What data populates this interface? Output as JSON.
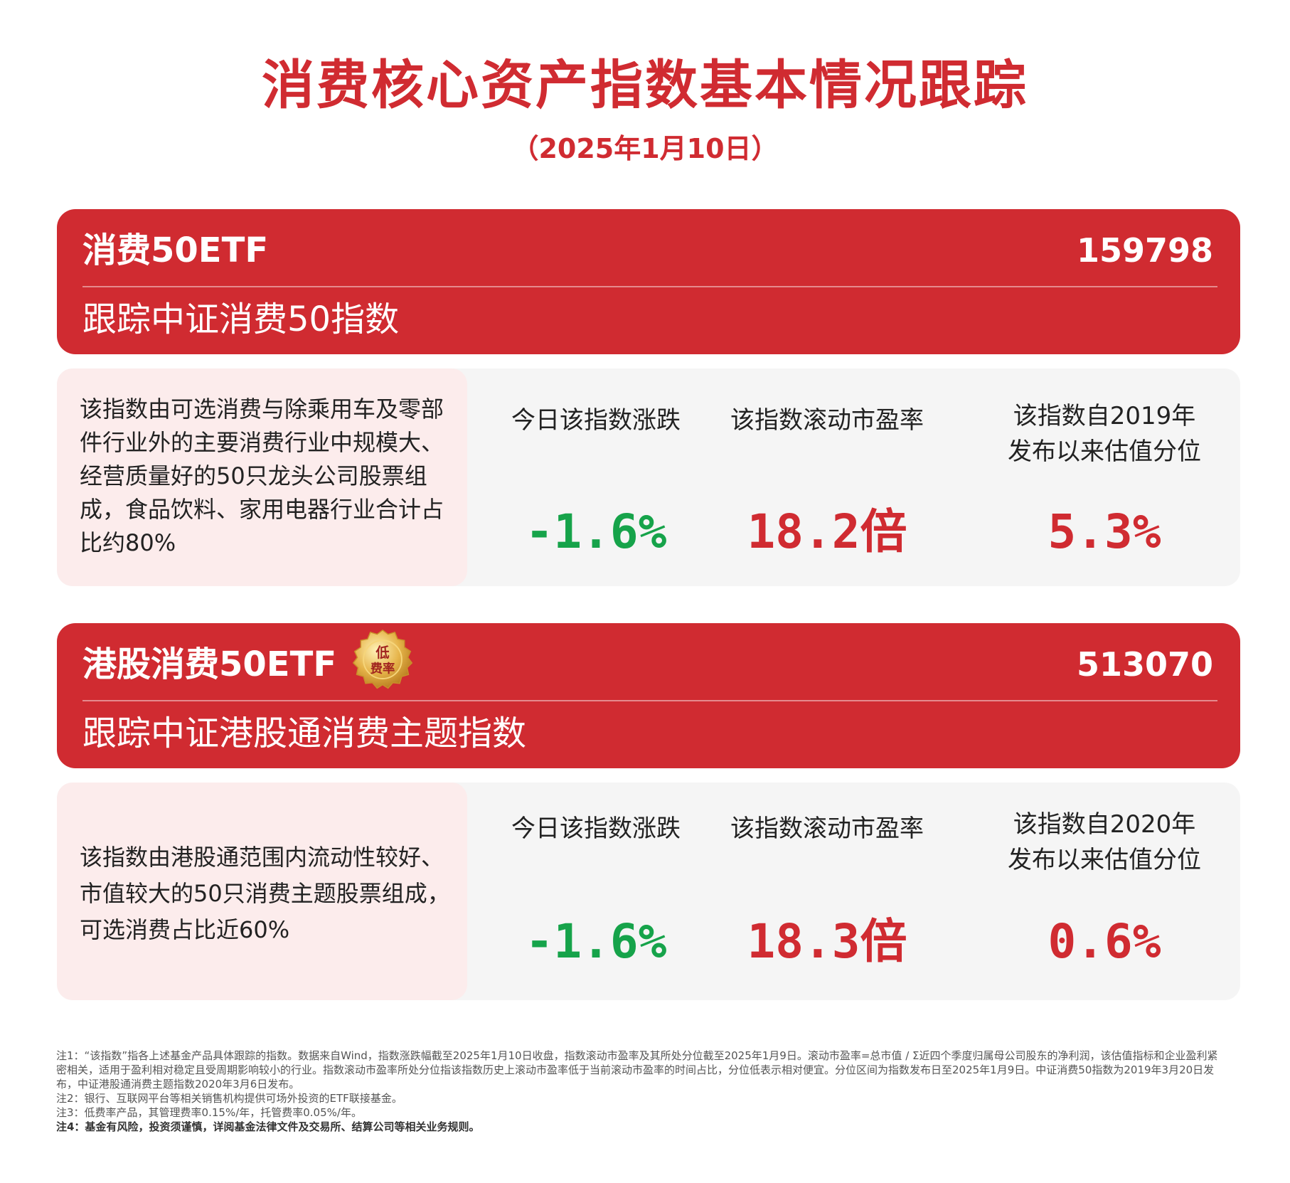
{
  "title": "消费核心资产指数基本情况跟踪",
  "date": "（2025年1月10日）",
  "colors": {
    "accent": "#d02b31",
    "down": "#16a34a",
    "panel": "#f5f5f5",
    "desc_panel": "#fcecec"
  },
  "funds": [
    {
      "name": "消费50ETF",
      "code": "159798",
      "tracking": "跟踪中证消费50指数",
      "description": "该指数由可选消费与除乘用车及零部件行业外的主要消费行业中规模大、经营质量好的50只龙头公司股票组成，食品饮料、家用电器行业合计占比约80%",
      "metrics": [
        {
          "label": "今日该指数涨跌",
          "value": "-1.6%",
          "trend": "down"
        },
        {
          "label": "该指数滚动市盈率",
          "value": "18.2倍",
          "trend": "neutral"
        },
        {
          "label": "该指数自2019年\n发布以来估值分位",
          "value": "5.3%",
          "trend": "neutral"
        }
      ]
    },
    {
      "name": "港股消费50ETF",
      "code": "513070",
      "badge": {
        "line1": "低",
        "line2": "费率",
        "icon": "low-fee-seal-icon"
      },
      "tracking": "跟踪中证港股通消费主题指数",
      "description": "该指数由港股通范围内流动性较好、市值较大的50只消费主题股票组成，可选消费占比近60%",
      "metrics": [
        {
          "label": "今日该指数涨跌",
          "value": "-1.6%",
          "trend": "down"
        },
        {
          "label": "该指数滚动市盈率",
          "value": "18.3倍",
          "trend": "neutral"
        },
        {
          "label": "该指数自2020年\n发布以来估值分位",
          "value": "0.6%",
          "trend": "neutral"
        }
      ]
    }
  ],
  "notes": {
    "note1": "注1：“该指数”指各上述基金产品具体跟踪的指数。数据来自Wind，指数涨跌幅截至2025年1月10日收盘，指数滚动市盈率及其所处分位截至2025年1月9日。滚动市盈率=总市值 / Σ近四个季度归属母公司股东的净利润，该估值指标和企业盈利紧密相关，适用于盈利相对稳定且受周期影响较小的行业。指数滚动市盈率所处分位指该指数历史上滚动市盈率低于当前滚动市盈率的时间占比，分位低表示相对便宜。分位区间为指数发布日至2025年1月9日。中证消费50指数为2019年3月20日发布，中证港股通消费主题指数2020年3月6日发布。",
    "note2": "注2：银行、互联网平台等相关销售机构提供可场外投资的ETF联接基金。",
    "note3": "注3：低费率产品，其管理费率0.15%/年，托管费率0.05%/年。",
    "note4": "注4：基金有风险，投资须谨慎，详阅基金法律文件及交易所、结算公司等相关业务规则。"
  }
}
